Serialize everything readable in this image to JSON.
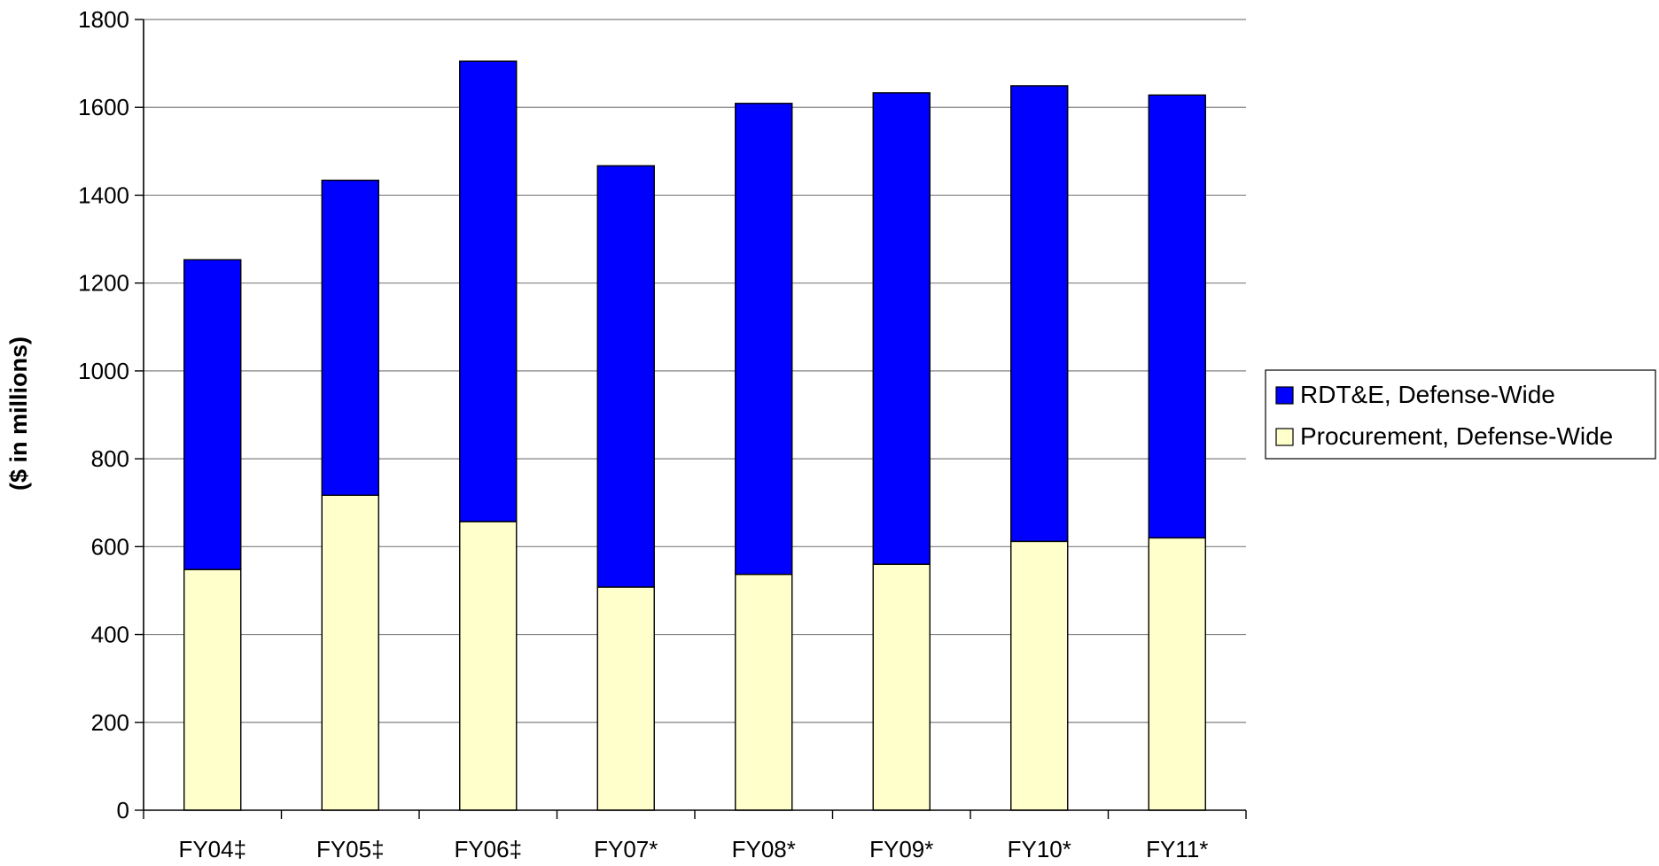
{
  "chart_data": {
    "type": "bar",
    "stacked": true,
    "categories": [
      "FY04‡",
      "FY05‡",
      "FY06‡",
      "FY07*",
      "FY08*",
      "FY09*",
      "FY10*",
      "FY11*"
    ],
    "series": [
      {
        "name": "Procurement, Defense-Wide",
        "color": "#FFFFCC",
        "values": [
          548,
          717,
          657,
          508,
          537,
          560,
          612,
          620
        ]
      },
      {
        "name": "RDT&E, Defense-Wide",
        "color": "#0000FF",
        "values": [
          705,
          717,
          1048,
          959,
          1072,
          1073,
          1037,
          1008
        ]
      }
    ],
    "legend_order": [
      "RDT&E, Defense-Wide",
      "Procurement, Defense-Wide"
    ],
    "ylabel": "($ in millions)",
    "xlabel": "",
    "title": "",
    "ylim": [
      0,
      1800
    ],
    "yticks": [
      0,
      200,
      400,
      600,
      800,
      1000,
      1200,
      1400,
      1600,
      1800
    ],
    "grid": true,
    "legend_position": "right"
  }
}
